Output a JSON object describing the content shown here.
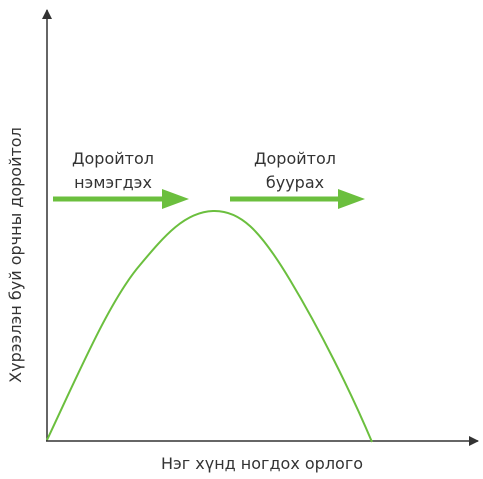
{
  "y_axis_label": "Хүрээлэн буй орчны доройтол",
  "x_axis_label": "Нэг хүнд ногдох орлого",
  "annotations": [
    {
      "lines": [
        "Доройтол",
        "нэмэгдэх"
      ]
    },
    {
      "lines": [
        "Доройтол",
        "буурах"
      ]
    }
  ]
}
